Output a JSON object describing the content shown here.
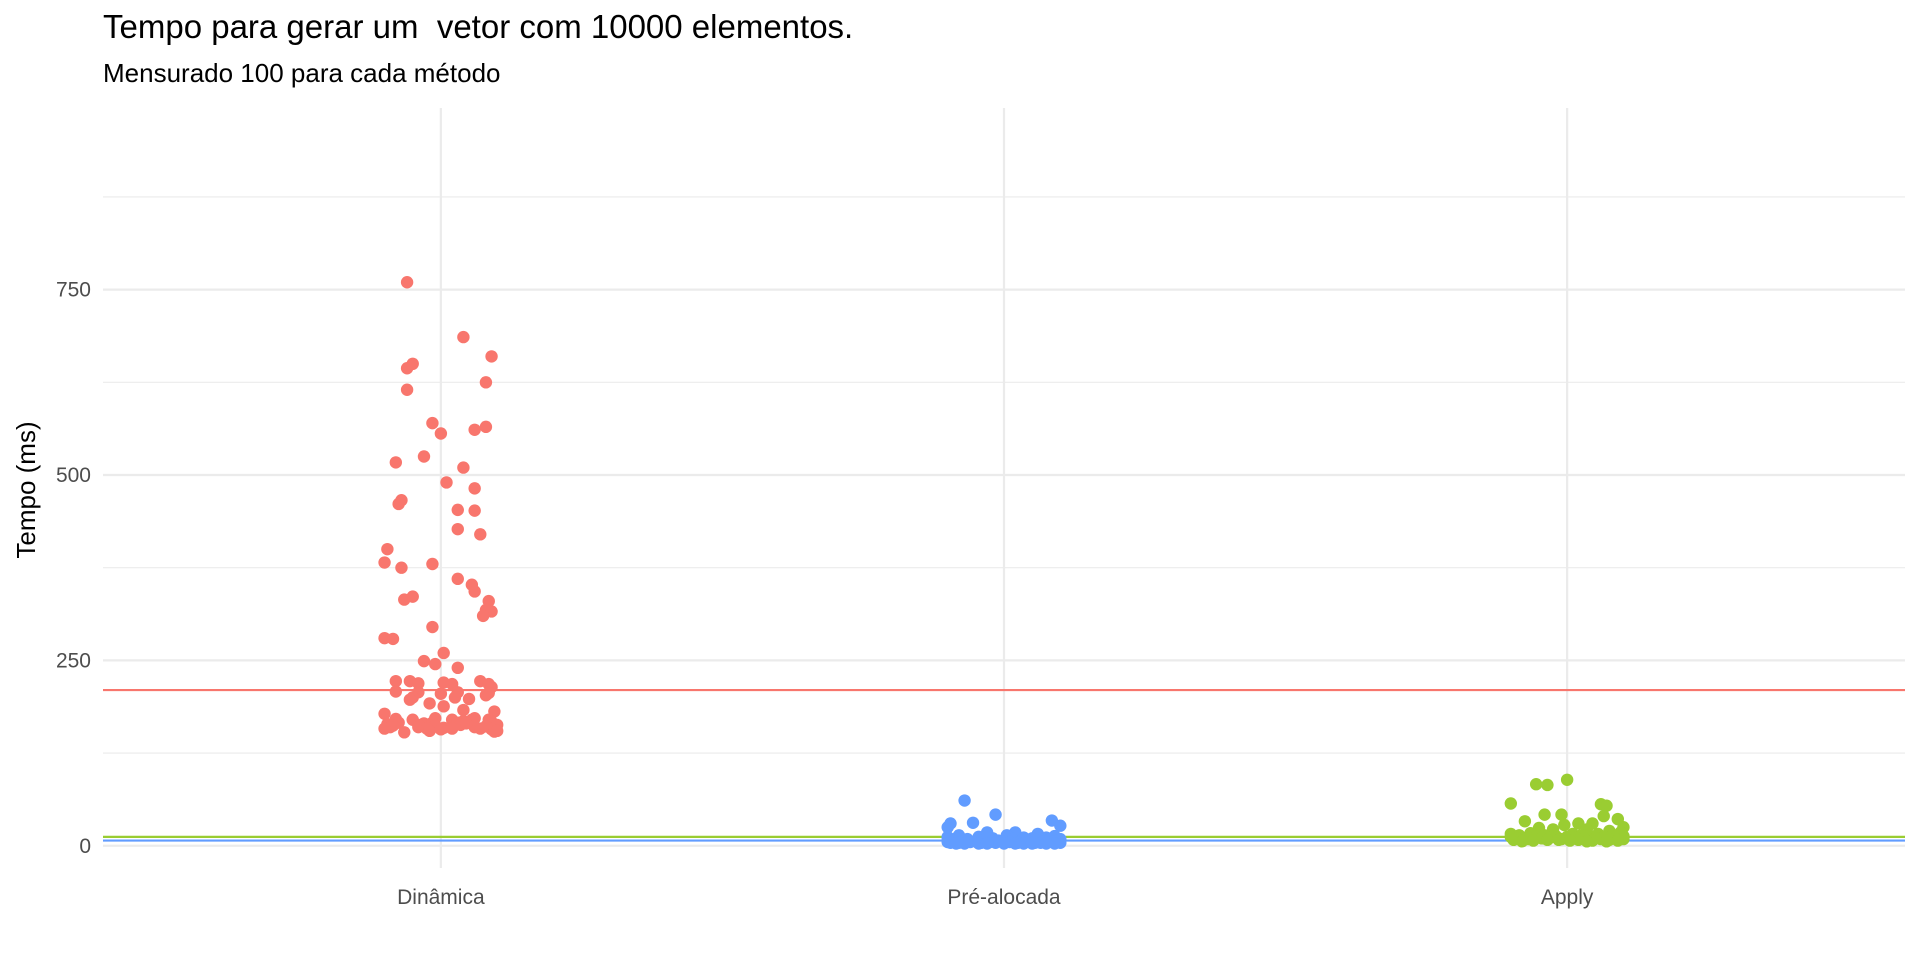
{
  "chart_data": {
    "type": "scatter",
    "title": "Tempo para gerar um  vetor com 10000 elementos.",
    "subtitle": "Mensurado 100 para cada método",
    "xlabel": "",
    "ylabel": "Tempo (ms)",
    "ylim": [
      -30,
      995
    ],
    "grid": true,
    "legend": "none",
    "categories": [
      "Dinâmica",
      "Pré-alocada",
      "Apply"
    ],
    "y_ticks": [
      0,
      250,
      500,
      750
    ],
    "series": [
      {
        "category": "Dinâmica",
        "color": "#F8766D",
        "mean": 210,
        "points": [
          [
            -0.06,
            760
          ],
          [
            0.04,
            686
          ],
          [
            0.09,
            660
          ],
          [
            -0.05,
            650
          ],
          [
            -0.06,
            644
          ],
          [
            0.08,
            625
          ],
          [
            -0.06,
            615
          ],
          [
            -0.015,
            570
          ],
          [
            0.08,
            565
          ],
          [
            0.06,
            561
          ],
          [
            0.0,
            556
          ],
          [
            -0.03,
            525
          ],
          [
            -0.08,
            517
          ],
          [
            0.04,
            510
          ],
          [
            0.01,
            490
          ],
          [
            0.06,
            482
          ],
          [
            -0.07,
            466
          ],
          [
            -0.075,
            461
          ],
          [
            0.03,
            453
          ],
          [
            0.06,
            452
          ],
          [
            0.03,
            427
          ],
          [
            0.07,
            420
          ],
          [
            -0.095,
            400
          ],
          [
            -0.1,
            382
          ],
          [
            -0.015,
            380
          ],
          [
            -0.07,
            375
          ],
          [
            0.03,
            360
          ],
          [
            0.055,
            352
          ],
          [
            0.06,
            343
          ],
          [
            -0.05,
            336
          ],
          [
            -0.065,
            332
          ],
          [
            0.085,
            330
          ],
          [
            0.08,
            318
          ],
          [
            0.09,
            316
          ],
          [
            0.075,
            310
          ],
          [
            -0.015,
            295
          ],
          [
            -0.1,
            280
          ],
          [
            -0.085,
            279
          ],
          [
            0.005,
            260
          ],
          [
            -0.03,
            249
          ],
          [
            -0.01,
            245
          ],
          [
            0.03,
            240
          ],
          [
            0.07,
            222
          ],
          [
            0.085,
            218
          ],
          [
            0.09,
            214
          ],
          [
            -0.08,
            222
          ],
          [
            -0.055,
            222
          ],
          [
            -0.04,
            219
          ],
          [
            0.005,
            220
          ],
          [
            0.02,
            218
          ],
          [
            -0.08,
            208
          ],
          [
            -0.04,
            207
          ],
          [
            0.0,
            205
          ],
          [
            0.03,
            207
          ],
          [
            0.08,
            203
          ],
          [
            0.085,
            206
          ],
          [
            -0.05,
            200
          ],
          [
            0.025,
            200
          ],
          [
            0.05,
            198
          ],
          [
            -0.055,
            197
          ],
          [
            -0.02,
            192
          ],
          [
            0.005,
            188
          ],
          [
            0.04,
            183
          ],
          [
            -0.1,
            178
          ],
          [
            0.095,
            181
          ],
          [
            -0.08,
            171
          ],
          [
            -0.05,
            170
          ],
          [
            -0.01,
            172
          ],
          [
            0.02,
            170
          ],
          [
            0.04,
            168
          ],
          [
            0.06,
            172
          ],
          [
            0.085,
            170
          ],
          [
            -0.075,
            166
          ],
          [
            -0.03,
            165
          ],
          [
            -0.015,
            166
          ],
          [
            0.03,
            166
          ],
          [
            0.055,
            170
          ],
          [
            0.09,
            167
          ],
          [
            -0.095,
            164
          ],
          [
            -0.085,
            162
          ],
          [
            -0.04,
            163
          ],
          [
            -0.01,
            162
          ],
          [
            0.035,
            163
          ],
          [
            0.1,
            163
          ],
          [
            -0.09,
            160
          ],
          [
            -0.04,
            160
          ],
          [
            0.005,
            159
          ],
          [
            0.06,
            160
          ],
          [
            0.08,
            161
          ],
          [
            -0.1,
            158
          ],
          [
            -0.025,
            158
          ],
          [
            0.02,
            158
          ],
          [
            0.07,
            158
          ],
          [
            0.09,
            157
          ],
          [
            -0.065,
            153
          ],
          [
            0.095,
            154
          ],
          [
            -0.02,
            155
          ],
          [
            0.0,
            157
          ],
          [
            0.1,
            155
          ],
          [
            0.045,
            165
          ]
        ]
      },
      {
        "category": "Pré-alocada",
        "color": "#619CFF",
        "mean": 7,
        "points": [
          [
            -0.07,
            61
          ],
          [
            -0.015,
            42
          ],
          [
            0.085,
            34
          ],
          [
            -0.095,
            30
          ],
          [
            -0.055,
            31
          ],
          [
            0.1,
            27
          ],
          [
            -0.1,
            25
          ],
          [
            0.02,
            18
          ],
          [
            -0.03,
            18
          ],
          [
            0.06,
            16
          ],
          [
            -0.08,
            14
          ],
          [
            0.005,
            14
          ],
          [
            0.09,
            13
          ],
          [
            -0.1,
            12
          ],
          [
            -0.045,
            12
          ],
          [
            0.035,
            11
          ],
          [
            0.075,
            11
          ],
          [
            -0.085,
            10
          ],
          [
            -0.02,
            10
          ],
          [
            0.05,
            10
          ],
          [
            0.1,
            9
          ],
          [
            -0.065,
            9
          ],
          [
            0.015,
            9
          ],
          [
            -0.1,
            8
          ],
          [
            -0.035,
            8
          ],
          [
            0.04,
            8
          ],
          [
            0.08,
            8
          ],
          [
            -0.09,
            7
          ],
          [
            -0.01,
            7
          ],
          [
            0.06,
            7
          ],
          [
            0.095,
            7
          ],
          [
            -0.075,
            6
          ],
          [
            0.0,
            6
          ],
          [
            0.03,
            6
          ],
          [
            -0.05,
            6
          ],
          [
            0.07,
            6
          ],
          [
            -0.1,
            5
          ],
          [
            -0.025,
            5
          ],
          [
            0.045,
            5
          ],
          [
            0.085,
            5
          ],
          [
            -0.06,
            5
          ],
          [
            0.01,
            5
          ],
          [
            -0.08,
            4
          ],
          [
            -0.04,
            4
          ],
          [
            0.025,
            4
          ],
          [
            0.065,
            4
          ],
          [
            0.1,
            4
          ],
          [
            -0.095,
            4
          ],
          [
            -0.015,
            4
          ],
          [
            0.055,
            4
          ],
          [
            -0.07,
            3
          ],
          [
            0.0,
            3
          ],
          [
            0.035,
            3
          ],
          [
            0.09,
            3
          ],
          [
            -0.045,
            3
          ],
          [
            -0.085,
            3
          ],
          [
            0.02,
            3
          ],
          [
            0.075,
            3
          ],
          [
            -0.03,
            3
          ],
          [
            0.05,
            3
          ]
        ]
      },
      {
        "category": "Apply",
        "color": "#9ACD32",
        "mean": 12,
        "points": [
          [
            0.0,
            89
          ],
          [
            -0.055,
            83
          ],
          [
            -0.035,
            82
          ],
          [
            -0.1,
            57
          ],
          [
            0.06,
            56
          ],
          [
            0.07,
            54
          ],
          [
            -0.04,
            42
          ],
          [
            -0.01,
            42
          ],
          [
            0.065,
            40
          ],
          [
            0.09,
            36
          ],
          [
            -0.075,
            33
          ],
          [
            0.02,
            30
          ],
          [
            0.045,
            30
          ],
          [
            -0.005,
            28
          ],
          [
            0.1,
            25
          ],
          [
            -0.05,
            24
          ],
          [
            -0.025,
            22
          ],
          [
            0.035,
            22
          ],
          [
            0.075,
            20
          ],
          [
            0.095,
            18
          ],
          [
            -0.1,
            16
          ],
          [
            -0.065,
            17
          ],
          [
            0.01,
            16
          ],
          [
            0.055,
            16
          ],
          [
            -0.085,
            14
          ],
          [
            -0.04,
            14
          ],
          [
            0.025,
            14
          ],
          [
            0.08,
            14
          ],
          [
            -0.02,
            13
          ],
          [
            0.1,
            13
          ],
          [
            -0.1,
            12
          ],
          [
            -0.055,
            12
          ],
          [
            0.0,
            12
          ],
          [
            0.04,
            12
          ],
          [
            0.065,
            12
          ],
          [
            0.09,
            11
          ],
          [
            -0.08,
            11
          ],
          [
            -0.03,
            11
          ],
          [
            0.015,
            11
          ],
          [
            0.05,
            10
          ],
          [
            -0.09,
            10
          ],
          [
            -0.045,
            10
          ],
          [
            0.03,
            10
          ],
          [
            0.085,
            10
          ],
          [
            -0.01,
            9
          ],
          [
            0.06,
            9
          ],
          [
            -0.07,
            9
          ],
          [
            0.1,
            9
          ],
          [
            -0.035,
            8
          ],
          [
            0.02,
            8
          ],
          [
            0.075,
            8
          ],
          [
            -0.095,
            8
          ],
          [
            -0.015,
            8
          ],
          [
            0.045,
            7
          ],
          [
            -0.06,
            7
          ],
          [
            0.005,
            7
          ],
          [
            0.09,
            7
          ],
          [
            -0.08,
            6
          ],
          [
            0.035,
            6
          ],
          [
            0.07,
            6
          ]
        ]
      }
    ]
  }
}
